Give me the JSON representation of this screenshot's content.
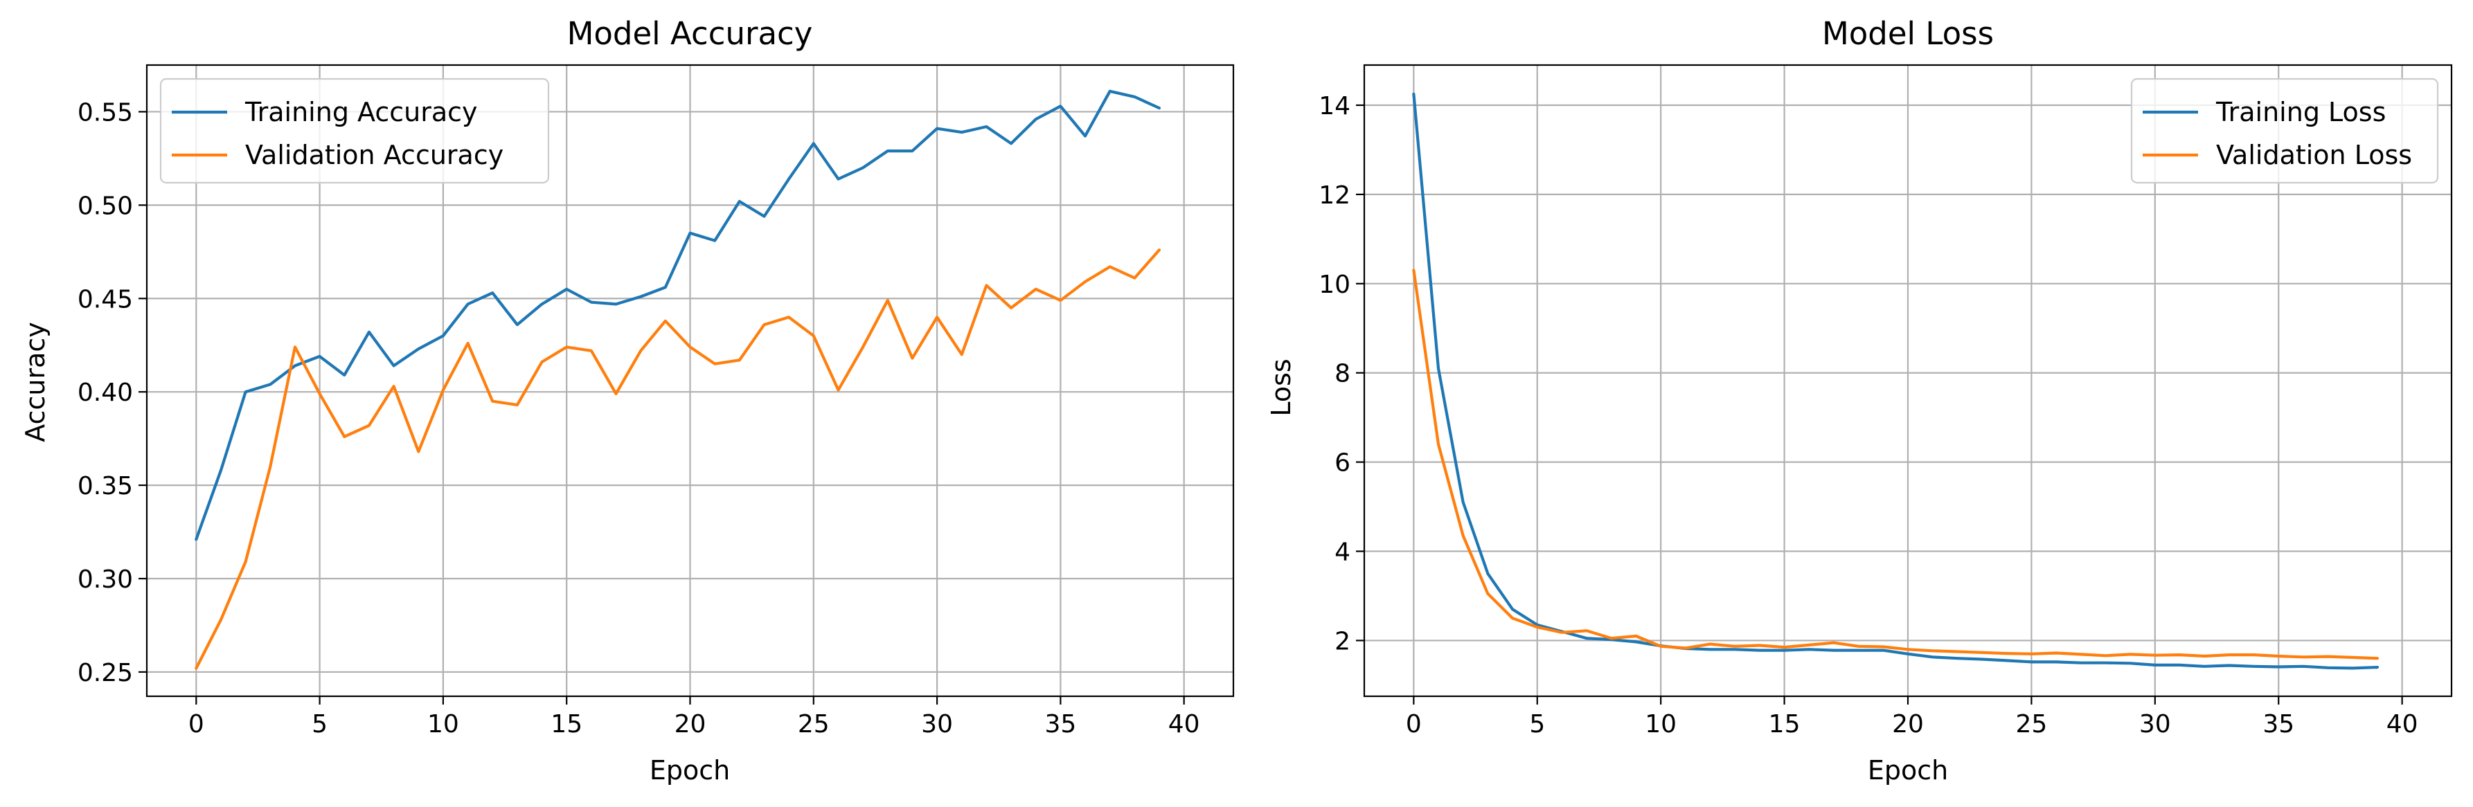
{
  "chart_data": [
    {
      "type": "line",
      "title": "Model Accuracy",
      "xlabel": "Epoch",
      "ylabel": "Accuracy",
      "xlim": [
        -2,
        42
      ],
      "ylim": [
        0.237,
        0.575
      ],
      "xticks": [
        0,
        5,
        10,
        15,
        20,
        25,
        30,
        35,
        40
      ],
      "yticks": [
        0.25,
        0.3,
        0.35,
        0.4,
        0.45,
        0.5,
        0.55
      ],
      "ytick_decimals": 2,
      "grid": true,
      "legend_position": "upper-left",
      "x": [
        0,
        1,
        2,
        3,
        4,
        5,
        6,
        7,
        8,
        9,
        10,
        11,
        12,
        13,
        14,
        15,
        16,
        17,
        18,
        19,
        20,
        21,
        22,
        23,
        24,
        25,
        26,
        27,
        28,
        29,
        30,
        31,
        32,
        33,
        34,
        35,
        36,
        37,
        38,
        39
      ],
      "series": [
        {
          "name": "Training Accuracy",
          "color": "#1f77b4",
          "values": [
            0.321,
            0.358,
            0.4,
            0.404,
            0.414,
            0.419,
            0.409,
            0.432,
            0.414,
            0.423,
            0.43,
            0.447,
            0.453,
            0.436,
            0.447,
            0.455,
            0.448,
            0.447,
            0.451,
            0.456,
            0.485,
            0.481,
            0.502,
            0.494,
            0.514,
            0.533,
            0.514,
            0.52,
            0.529,
            0.529,
            0.541,
            0.539,
            0.542,
            0.533,
            0.546,
            0.553,
            0.537,
            0.561,
            0.558,
            0.552
          ]
        },
        {
          "name": "Validation Accuracy",
          "color": "#ff7f0e",
          "values": [
            0.252,
            0.278,
            0.309,
            0.36,
            0.424,
            0.399,
            0.376,
            0.382,
            0.403,
            0.368,
            0.401,
            0.426,
            0.395,
            0.393,
            0.416,
            0.424,
            0.422,
            0.399,
            0.422,
            0.438,
            0.424,
            0.415,
            0.417,
            0.436,
            0.44,
            0.43,
            0.401,
            0.424,
            0.449,
            0.418,
            0.44,
            0.42,
            0.457,
            0.445,
            0.455,
            0.449,
            0.459,
            0.467,
            0.461,
            0.476
          ]
        }
      ]
    },
    {
      "type": "line",
      "title": "Model Loss",
      "xlabel": "Epoch",
      "ylabel": "Loss",
      "xlim": [
        -2,
        42
      ],
      "ylim": [
        0.75,
        14.9
      ],
      "xticks": [
        0,
        5,
        10,
        15,
        20,
        25,
        30,
        35,
        40
      ],
      "yticks": [
        2,
        4,
        6,
        8,
        10,
        12,
        14
      ],
      "ytick_decimals": 0,
      "grid": true,
      "legend_position": "upper-right",
      "x": [
        0,
        1,
        2,
        3,
        4,
        5,
        6,
        7,
        8,
        9,
        10,
        11,
        12,
        13,
        14,
        15,
        16,
        17,
        18,
        19,
        20,
        21,
        22,
        23,
        24,
        25,
        26,
        27,
        28,
        29,
        30,
        31,
        32,
        33,
        34,
        35,
        36,
        37,
        38,
        39
      ],
      "series": [
        {
          "name": "Training Loss",
          "color": "#1f77b4",
          "values": [
            14.25,
            8.1,
            5.1,
            3.5,
            2.7,
            2.35,
            2.2,
            2.05,
            2.02,
            1.97,
            1.88,
            1.82,
            1.8,
            1.8,
            1.78,
            1.78,
            1.8,
            1.78,
            1.78,
            1.78,
            1.7,
            1.63,
            1.6,
            1.58,
            1.55,
            1.52,
            1.52,
            1.5,
            1.5,
            1.49,
            1.45,
            1.45,
            1.42,
            1.44,
            1.42,
            1.41,
            1.42,
            1.39,
            1.38,
            1.4
          ]
        },
        {
          "name": "Validation Loss",
          "color": "#ff7f0e",
          "values": [
            10.3,
            6.4,
            4.35,
            3.05,
            2.5,
            2.3,
            2.18,
            2.22,
            2.05,
            2.1,
            1.87,
            1.83,
            1.92,
            1.87,
            1.89,
            1.85,
            1.9,
            1.95,
            1.87,
            1.86,
            1.8,
            1.77,
            1.75,
            1.73,
            1.71,
            1.7,
            1.72,
            1.69,
            1.66,
            1.69,
            1.67,
            1.68,
            1.65,
            1.68,
            1.68,
            1.65,
            1.63,
            1.64,
            1.62,
            1.6
          ]
        }
      ]
    }
  ]
}
